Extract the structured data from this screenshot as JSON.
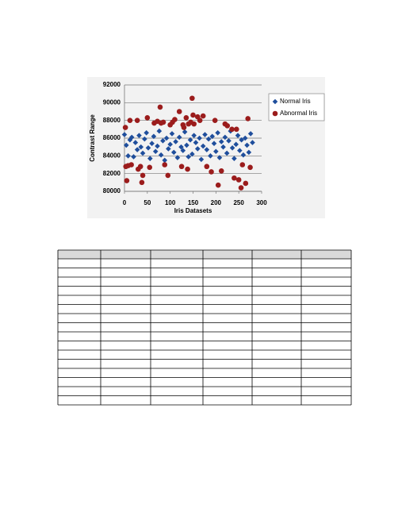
{
  "chart_data": {
    "type": "scatter",
    "x_label": "Iris Datasets",
    "y_label": "Contrast Range",
    "xlim": [
      0,
      300
    ],
    "xticks": [
      0,
      50,
      100,
      150,
      200,
      250,
      300
    ],
    "ylim": [
      80000,
      92000
    ],
    "yticks": [
      80000,
      82000,
      84000,
      86000,
      88000,
      90000,
      92000
    ],
    "grid": true,
    "legend": "right",
    "series": [
      {
        "name": "Normal Iris",
        "color": "#1f4e9c",
        "marker": "diamond",
        "x": [
          0,
          4,
          8,
          12,
          16,
          20,
          24,
          28,
          32,
          36,
          40,
          44,
          48,
          52,
          56,
          60,
          64,
          68,
          72,
          76,
          80,
          84,
          88,
          92,
          96,
          100,
          104,
          108,
          112,
          116,
          120,
          124,
          128,
          132,
          136,
          140,
          144,
          148,
          152,
          156,
          160,
          164,
          168,
          172,
          176,
          180,
          184,
          188,
          192,
          196,
          200,
          204,
          208,
          212,
          216,
          220,
          224,
          228,
          232,
          236,
          240,
          244,
          248,
          252,
          256,
          260,
          264,
          268,
          272,
          276,
          280
        ],
        "values": [
          86400,
          85200,
          84000,
          85800,
          86100,
          83900,
          85500,
          84700,
          86300,
          85000,
          84300,
          85900,
          86600,
          84900,
          83700,
          85400,
          86200,
          84500,
          85100,
          86800,
          84100,
          85700,
          83500,
          86000,
          84800,
          85300,
          86500,
          84400,
          85600,
          83800,
          86100,
          85000,
          84600,
          86700,
          85200,
          83900,
          85800,
          84200,
          86300,
          85500,
          84800,
          86000,
          83600,
          85100,
          86400,
          84700,
          85900,
          84000,
          86200,
          85400,
          84500,
          86600,
          83800,
          85600,
          85000,
          86100,
          84300,
          85700,
          86800,
          84900,
          83700,
          85300,
          86300,
          84600,
          85800,
          84100,
          86000,
          85200,
          84400,
          86500,
          85500
        ]
      },
      {
        "name": "Abnormal Iris",
        "color": "#9b1c1c",
        "marker": "circle",
        "x": [
          2,
          3,
          5,
          8,
          12,
          15,
          28,
          30,
          35,
          38,
          40,
          50,
          55,
          65,
          72,
          78,
          80,
          85,
          88,
          95,
          100,
          105,
          110,
          120,
          125,
          128,
          130,
          135,
          138,
          140,
          145,
          148,
          150,
          152,
          160,
          165,
          172,
          180,
          190,
          198,
          205,
          212,
          220,
          225,
          235,
          240,
          245,
          250,
          255,
          258,
          265,
          270,
          275
        ],
        "values": [
          87200,
          82800,
          81200,
          82900,
          88000,
          83000,
          88000,
          82500,
          82800,
          81000,
          81800,
          88300,
          82700,
          87700,
          87900,
          89500,
          87700,
          87800,
          83000,
          81800,
          87500,
          87800,
          88100,
          89000,
          82800,
          87500,
          87200,
          88300,
          82500,
          87600,
          87800,
          90500,
          88600,
          87600,
          88400,
          88000,
          88500,
          82800,
          82200,
          88000,
          80700,
          82300,
          87600,
          87400,
          87000,
          81500,
          87000,
          81300,
          80400,
          83000,
          80900,
          88200,
          82700
        ]
      }
    ]
  }
}
